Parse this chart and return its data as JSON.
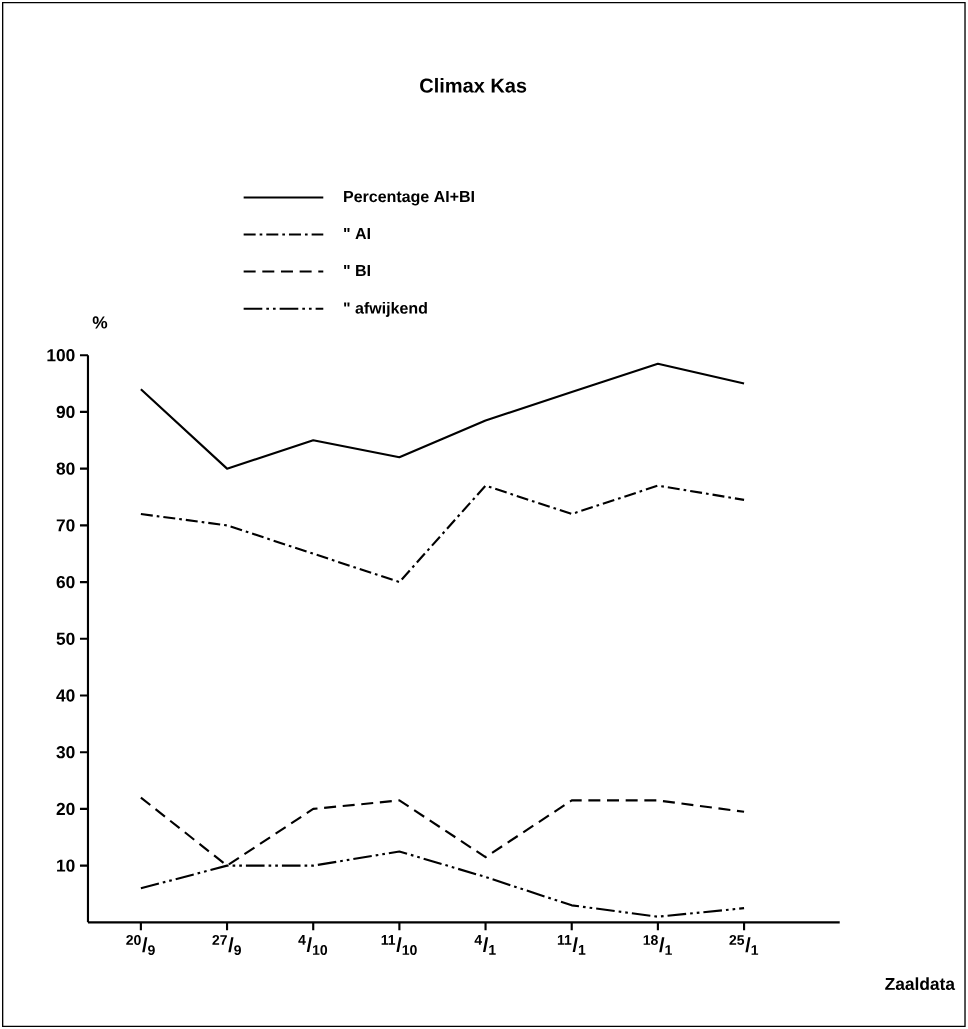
{
  "chart_data": {
    "type": "line",
    "title": "Climax Kas",
    "ylabel": "%",
    "xlabel": "Zaaldata",
    "categories": [
      "$^{20}$/$_{9}$",
      "$^{27}$/$_{9}$",
      "$^{4}$/$_{10}$",
      "$^{11}$/$_{10}$",
      "$^{4}$/$_{1}$",
      "$^{11}$/$_{1}$",
      "$^{18}$/$_{1}$",
      "$^{25}$/$_{1}$"
    ],
    "series": [
      {
        "name": "Percentage AI+BI",
        "color": "#000000",
        "line_style": "solid",
        "values": [
          94,
          80,
          85,
          82,
          88.5,
          93.5,
          98.5,
          95
        ]
      },
      {
        "name": "\" AI",
        "color": "#000000",
        "line_style": "dashdot",
        "values": [
          72,
          70,
          65,
          60,
          77,
          72,
          77,
          74.5
        ]
      },
      {
        "name": "\" BI",
        "color": "#000000",
        "line_style": "dashed",
        "values": [
          22,
          10,
          20,
          21.5,
          11.5,
          21.5,
          21.5,
          19.5
        ]
      },
      {
        "name": "\" afwijkend",
        "color": "#000000",
        "line_style": "dashdotdot",
        "values": [
          6,
          10,
          10,
          12.5,
          8,
          3,
          1,
          2.5
        ]
      }
    ],
    "ylim": [
      0,
      100
    ],
    "yticks": [
      10,
      20,
      30,
      40,
      50,
      60,
      70,
      80,
      90,
      100
    ],
    "legend": "top",
    "grid": false,
    "marker": "none"
  }
}
